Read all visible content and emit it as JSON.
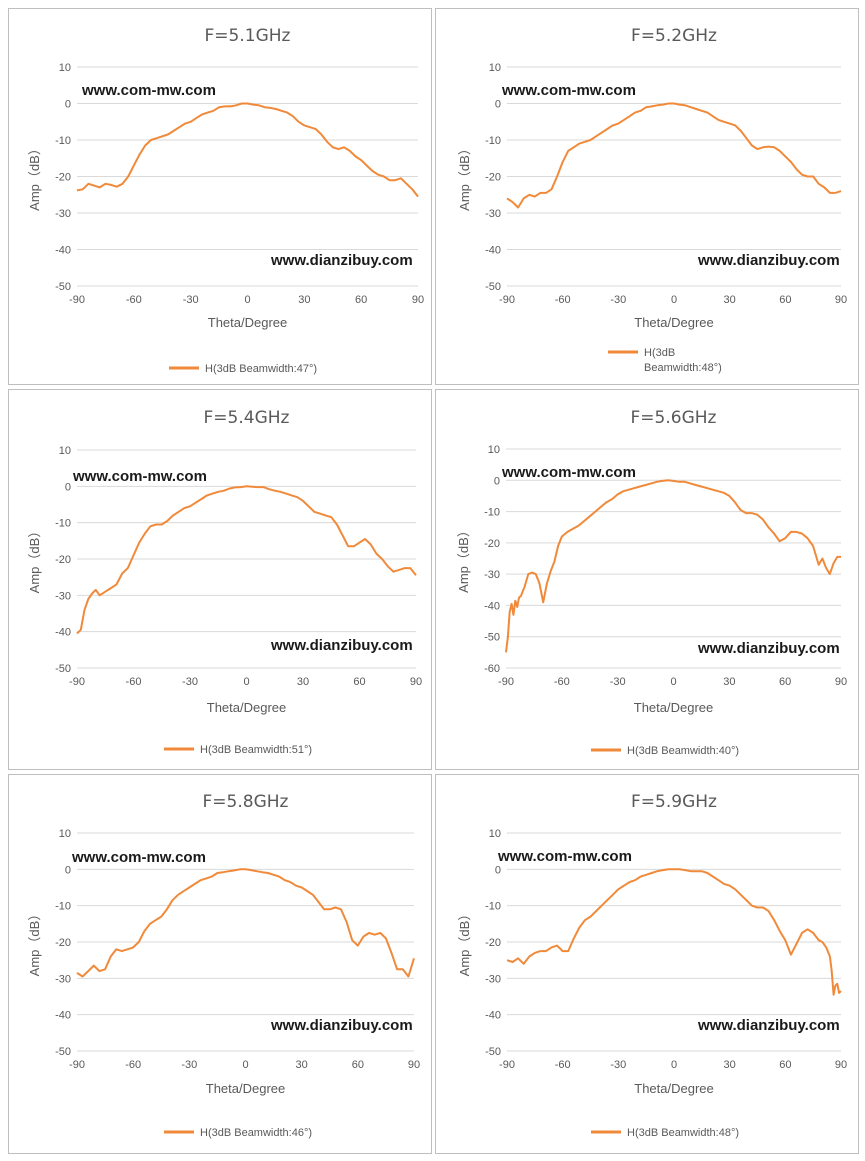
{
  "panels": [
    {
      "title": "F=5.1GHz",
      "watermark_top": "www.com-mw.com",
      "watermark_bottom": "www.dianzibuy.com",
      "legend": "H(3dB Beamwidth:47°)",
      "xlabel": "Theta/Degree",
      "ylabel": "Amp（dB）",
      "chart_data": {
        "type": "line",
        "xlim": [
          -90,
          90
        ],
        "ylim": [
          -50,
          10
        ],
        "xticks": [
          -90,
          -60,
          -30,
          0,
          30,
          60,
          90
        ],
        "yticks": [
          10,
          0,
          -10,
          -20,
          -30,
          -40,
          -50
        ],
        "series": [
          {
            "name": "H(3dB Beamwidth:47°)",
            "color": "#f08a3a",
            "x": [
              -90,
              -87,
              -84,
              -81,
              -78,
              -75,
              -72,
              -69,
              -66,
              -63,
              -60,
              -57,
              -54,
              -51,
              -48,
              -45,
              -42,
              -39,
              -36,
              -33,
              -30,
              -27,
              -24,
              -21,
              -18,
              -15,
              -12,
              -9,
              -6,
              -3,
              0,
              3,
              6,
              9,
              12,
              15,
              18,
              21,
              24,
              27,
              30,
              33,
              36,
              39,
              42,
              45,
              48,
              51,
              54,
              57,
              60,
              63,
              66,
              69,
              72,
              75,
              78,
              81,
              84,
              87,
              90
            ],
            "y": [
              -23.8,
              -23.5,
              -22,
              -22.5,
              -23,
              -22,
              -22.3,
              -22.8,
              -22,
              -20,
              -17,
              -14,
              -11.5,
              -10,
              -9.5,
              -9,
              -8.5,
              -7.5,
              -6.5,
              -5.5,
              -5,
              -4,
              -3,
              -2.5,
              -2,
              -1,
              -0.8,
              -0.8,
              -0.5,
              0,
              0,
              -0.3,
              -0.5,
              -1,
              -1.2,
              -1.5,
              -2,
              -2.5,
              -3.5,
              -5,
              -6,
              -6.5,
              -7,
              -8.5,
              -10.5,
              -12,
              -12.5,
              -12,
              -13,
              -14.5,
              -15.5,
              -17,
              -18.5,
              -19.5,
              -20,
              -21,
              -21,
              -20.5,
              -22,
              -23.5,
              -25.5
            ]
          }
        ]
      }
    },
    {
      "title": "F=5.2GHz",
      "watermark_top": "www.com-mw.com",
      "watermark_bottom": "www.dianzibuy.com",
      "legend": "H(3dB Beamwidth:48°)",
      "xlabel": "Theta/Degree",
      "ylabel": "Amp（dB）",
      "chart_data": {
        "type": "line",
        "xlim": [
          -90,
          90
        ],
        "ylim": [
          -50,
          10
        ],
        "xticks": [
          -90,
          -60,
          -30,
          0,
          30,
          60,
          90
        ],
        "yticks": [
          10,
          0,
          -10,
          -20,
          -30,
          -40,
          -50
        ],
        "series": [
          {
            "name": "H(3dB Beamwidth:48°)",
            "color": "#f08a3a",
            "x": [
              -90,
              -87,
              -84,
              -81,
              -78,
              -75,
              -72,
              -69,
              -66,
              -63,
              -60,
              -57,
              -54,
              -51,
              -48,
              -45,
              -42,
              -39,
              -36,
              -33,
              -30,
              -27,
              -24,
              -21,
              -18,
              -15,
              -12,
              -9,
              -6,
              -3,
              0,
              3,
              6,
              9,
              12,
              15,
              18,
              21,
              24,
              27,
              30,
              33,
              36,
              39,
              42,
              45,
              48,
              51,
              54,
              57,
              60,
              63,
              66,
              69,
              72,
              75,
              78,
              81,
              84,
              87,
              90
            ],
            "y": [
              -26,
              -27,
              -28.5,
              -26,
              -25,
              -25.5,
              -24.5,
              -24.5,
              -23.5,
              -20,
              -16,
              -13,
              -12,
              -11,
              -10.5,
              -10,
              -9,
              -8,
              -7,
              -6,
              -5.5,
              -4.5,
              -3.5,
              -2.5,
              -2,
              -1,
              -0.8,
              -0.5,
              -0.3,
              0,
              0,
              -0.3,
              -0.5,
              -1,
              -1.5,
              -2,
              -2.5,
              -3.5,
              -4.5,
              -5,
              -5.5,
              -6,
              -7.5,
              -9.5,
              -11.5,
              -12.5,
              -12,
              -11.8,
              -12,
              -13,
              -14.5,
              -16,
              -18,
              -19.5,
              -20,
              -20,
              -22,
              -23,
              -24.5,
              -24.5,
              -24
            ]
          }
        ]
      }
    },
    {
      "title": "F=5.4GHz",
      "watermark_top": "www.com-mw.com",
      "watermark_bottom": "www.dianzibuy.com",
      "legend": "H(3dB Beamwidth:51°)",
      "xlabel": "Theta/Degree",
      "ylabel": "Amp（dB）",
      "chart_data": {
        "type": "line",
        "xlim": [
          -90,
          90
        ],
        "ylim": [
          -50,
          10
        ],
        "xticks": [
          -90,
          -60,
          -30,
          0,
          30,
          60,
          90
        ],
        "yticks": [
          10,
          0,
          -10,
          -20,
          -30,
          -40,
          -50
        ],
        "series": [
          {
            "name": "H(3dB Beamwidth:51°)",
            "color": "#f08a3a",
            "x": [
              -90,
              -88,
              -86,
              -84,
              -82,
              -80,
              -78,
              -75,
              -72,
              -69,
              -66,
              -63,
              -60,
              -57,
              -54,
              -51,
              -48,
              -45,
              -42,
              -39,
              -36,
              -33,
              -30,
              -27,
              -24,
              -21,
              -18,
              -15,
              -12,
              -9,
              -6,
              -3,
              0,
              3,
              6,
              9,
              12,
              15,
              18,
              21,
              24,
              27,
              30,
              33,
              36,
              39,
              42,
              45,
              48,
              51,
              54,
              57,
              60,
              63,
              66,
              69,
              72,
              75,
              78,
              81,
              84,
              87,
              90
            ],
            "y": [
              -40.5,
              -39.5,
              -34,
              -31,
              -29.5,
              -28.5,
              -30,
              -29,
              -28,
              -27,
              -24,
              -22.5,
              -19,
              -15.5,
              -13,
              -11,
              -10.5,
              -10.5,
              -9.5,
              -8,
              -7,
              -6,
              -5.5,
              -4.5,
              -3.5,
              -2.5,
              -2,
              -1.5,
              -1.2,
              -0.6,
              -0.3,
              -0.2,
              0,
              -0.1,
              -0.2,
              -0.2,
              -0.8,
              -1.2,
              -1.5,
              -2,
              -2.5,
              -3,
              -4,
              -5.5,
              -7,
              -7.5,
              -8,
              -8.5,
              -10.5,
              -13.5,
              -16.5,
              -16.5,
              -15.5,
              -14.5,
              -16,
              -18.5,
              -20,
              -22,
              -23.5,
              -23,
              -22.5,
              -22.5,
              -24.5
            ]
          }
        ]
      }
    },
    {
      "title": "F=5.6GHz",
      "watermark_top": "www.com-mw.com",
      "watermark_bottom": "www.dianzibuy.com",
      "legend": "H(3dB Beamwidth:40°)",
      "xlabel": "Theta/Degree",
      "ylabel": "Amp（dB）",
      "chart_data": {
        "type": "line",
        "xlim": [
          -90,
          90
        ],
        "ylim": [
          -60,
          10
        ],
        "xticks": [
          -90,
          -60,
          -30,
          0,
          30,
          60,
          90
        ],
        "yticks": [
          10,
          0,
          -10,
          -20,
          -30,
          -40,
          -50,
          -60
        ],
        "series": [
          {
            "name": "H(3dB Beamwidth:40°)",
            "color": "#f08a3a",
            "x": [
              -90,
              -89,
              -88,
              -87,
              -86,
              -85,
              -84,
              -83,
              -82,
              -80,
              -78,
              -76,
              -74,
              -72,
              -70,
              -68,
              -66,
              -64,
              -62,
              -60,
              -57,
              -54,
              -51,
              -48,
              -45,
              -42,
              -39,
              -36,
              -33,
              -30,
              -27,
              -24,
              -21,
              -18,
              -15,
              -12,
              -9,
              -6,
              -3,
              0,
              3,
              6,
              9,
              12,
              15,
              18,
              21,
              24,
              27,
              30,
              33,
              36,
              39,
              42,
              45,
              48,
              51,
              54,
              57,
              60,
              63,
              66,
              69,
              72,
              75,
              78,
              80,
              82,
              84,
              86,
              88,
              90
            ],
            "y": [
              -55,
              -50,
              -42,
              -39.5,
              -43,
              -38.5,
              -40.5,
              -37.5,
              -37,
              -34,
              -30,
              -29.5,
              -30,
              -33,
              -39,
              -33,
              -29,
              -26,
              -21,
              -18,
              -16.5,
              -15.5,
              -14.5,
              -13,
              -11.5,
              -10,
              -8.5,
              -7,
              -6,
              -4.5,
              -3.5,
              -3,
              -2.5,
              -2,
              -1.5,
              -1,
              -0.5,
              -0.2,
              0,
              -0.2,
              -0.5,
              -0.5,
              -1,
              -1.5,
              -2,
              -2.5,
              -3,
              -3.5,
              -4,
              -5,
              -7,
              -9.5,
              -10.5,
              -10.5,
              -11,
              -12.5,
              -15,
              -17,
              -19.5,
              -18.5,
              -16.5,
              -16.5,
              -17,
              -18.5,
              -21,
              -27,
              -25,
              -28,
              -30,
              -26.5,
              -24.5,
              -24.5
            ]
          }
        ]
      }
    },
    {
      "title": "F=5.8GHz",
      "watermark_top": "www.com-mw.com",
      "watermark_bottom": "www.dianzibuy.com",
      "legend": "H(3dB Beamwidth:46°)",
      "xlabel": "Theta/Degree",
      "ylabel": "Amp（dB）",
      "chart_data": {
        "type": "line",
        "xlim": [
          -90,
          90
        ],
        "ylim": [
          -50,
          10
        ],
        "xticks": [
          -90,
          -60,
          -30,
          0,
          30,
          60,
          90
        ],
        "yticks": [
          10,
          0,
          -10,
          -20,
          -30,
          -40,
          -50
        ],
        "series": [
          {
            "name": "H(3dB Beamwidth:46°)",
            "color": "#f08a3a",
            "x": [
              -90,
              -87,
              -84,
              -81,
              -78,
              -75,
              -72,
              -69,
              -66,
              -63,
              -60,
              -57,
              -54,
              -51,
              -48,
              -45,
              -42,
              -39,
              -36,
              -33,
              -30,
              -27,
              -24,
              -21,
              -18,
              -15,
              -12,
              -9,
              -6,
              -3,
              0,
              3,
              6,
              9,
              12,
              15,
              18,
              21,
              24,
              27,
              30,
              33,
              36,
              39,
              42,
              45,
              48,
              51,
              54,
              57,
              60,
              63,
              66,
              69,
              72,
              75,
              78,
              81,
              84,
              87,
              90
            ],
            "y": [
              -28.5,
              -29.5,
              -28,
              -26.5,
              -28,
              -27.5,
              -24,
              -22,
              -22.5,
              -22,
              -21.5,
              -20,
              -17,
              -15,
              -14,
              -13,
              -11,
              -8.5,
              -7,
              -6,
              -5,
              -4,
              -3,
              -2.5,
              -2,
              -1,
              -0.8,
              -0.5,
              -0.3,
              0,
              0,
              -0.2,
              -0.5,
              -0.8,
              -1,
              -1.5,
              -2,
              -3,
              -3.5,
              -4.5,
              -5,
              -6,
              -7,
              -9,
              -11,
              -11,
              -10.5,
              -11,
              -14.5,
              -19.5,
              -21,
              -18.5,
              -17.5,
              -18,
              -17.5,
              -19,
              -23,
              -27.5,
              -27.5,
              -29.5,
              -24.5
            ]
          }
        ]
      }
    },
    {
      "title": "F=5.9GHz",
      "watermark_top": "www.com-mw.com",
      "watermark_bottom": "www.dianzibuy.com",
      "legend": "H(3dB Beamwidth:48°)",
      "xlabel": "Theta/Degree",
      "ylabel": "Amp（dB）",
      "chart_data": {
        "type": "line",
        "xlim": [
          -90,
          90
        ],
        "ylim": [
          -50,
          10
        ],
        "xticks": [
          -90,
          -60,
          -30,
          0,
          30,
          60,
          90
        ],
        "yticks": [
          10,
          0,
          -10,
          -20,
          -30,
          -40,
          -50
        ],
        "series": [
          {
            "name": "H(3dB Beamwidth:48°)",
            "color": "#f08a3a",
            "x": [
              -90,
              -87,
              -84,
              -81,
              -78,
              -75,
              -72,
              -69,
              -66,
              -63,
              -60,
              -57,
              -54,
              -51,
              -48,
              -45,
              -42,
              -39,
              -36,
              -33,
              -30,
              -27,
              -24,
              -21,
              -18,
              -15,
              -12,
              -9,
              -6,
              -3,
              0,
              3,
              6,
              9,
              12,
              15,
              18,
              21,
              24,
              27,
              30,
              33,
              36,
              39,
              42,
              45,
              48,
              51,
              54,
              57,
              60,
              63,
              66,
              69,
              72,
              75,
              78,
              80,
              82,
              84,
              85,
              86,
              87,
              88,
              89,
              90
            ],
            "y": [
              -25,
              -25.5,
              -24.5,
              -26,
              -24,
              -23,
              -22.5,
              -22.5,
              -21.5,
              -21,
              -22.5,
              -22.5,
              -19,
              -16,
              -14,
              -13,
              -11.5,
              -10,
              -8.5,
              -7,
              -5.5,
              -4.5,
              -3.5,
              -3,
              -2,
              -1.5,
              -1,
              -0.5,
              -0.2,
              0,
              0,
              0,
              -0.2,
              -0.5,
              -0.5,
              -0.5,
              -1,
              -2,
              -3,
              -4,
              -4.5,
              -5.5,
              -7,
              -8.5,
              -10,
              -10.5,
              -10.5,
              -11.5,
              -14,
              -17,
              -19.5,
              -23.5,
              -20.5,
              -17.5,
              -16.5,
              -17.5,
              -19.5,
              -20,
              -21.5,
              -24,
              -28,
              -34.5,
              -32,
              -31.5,
              -34,
              -33.5
            ]
          }
        ]
      }
    }
  ]
}
